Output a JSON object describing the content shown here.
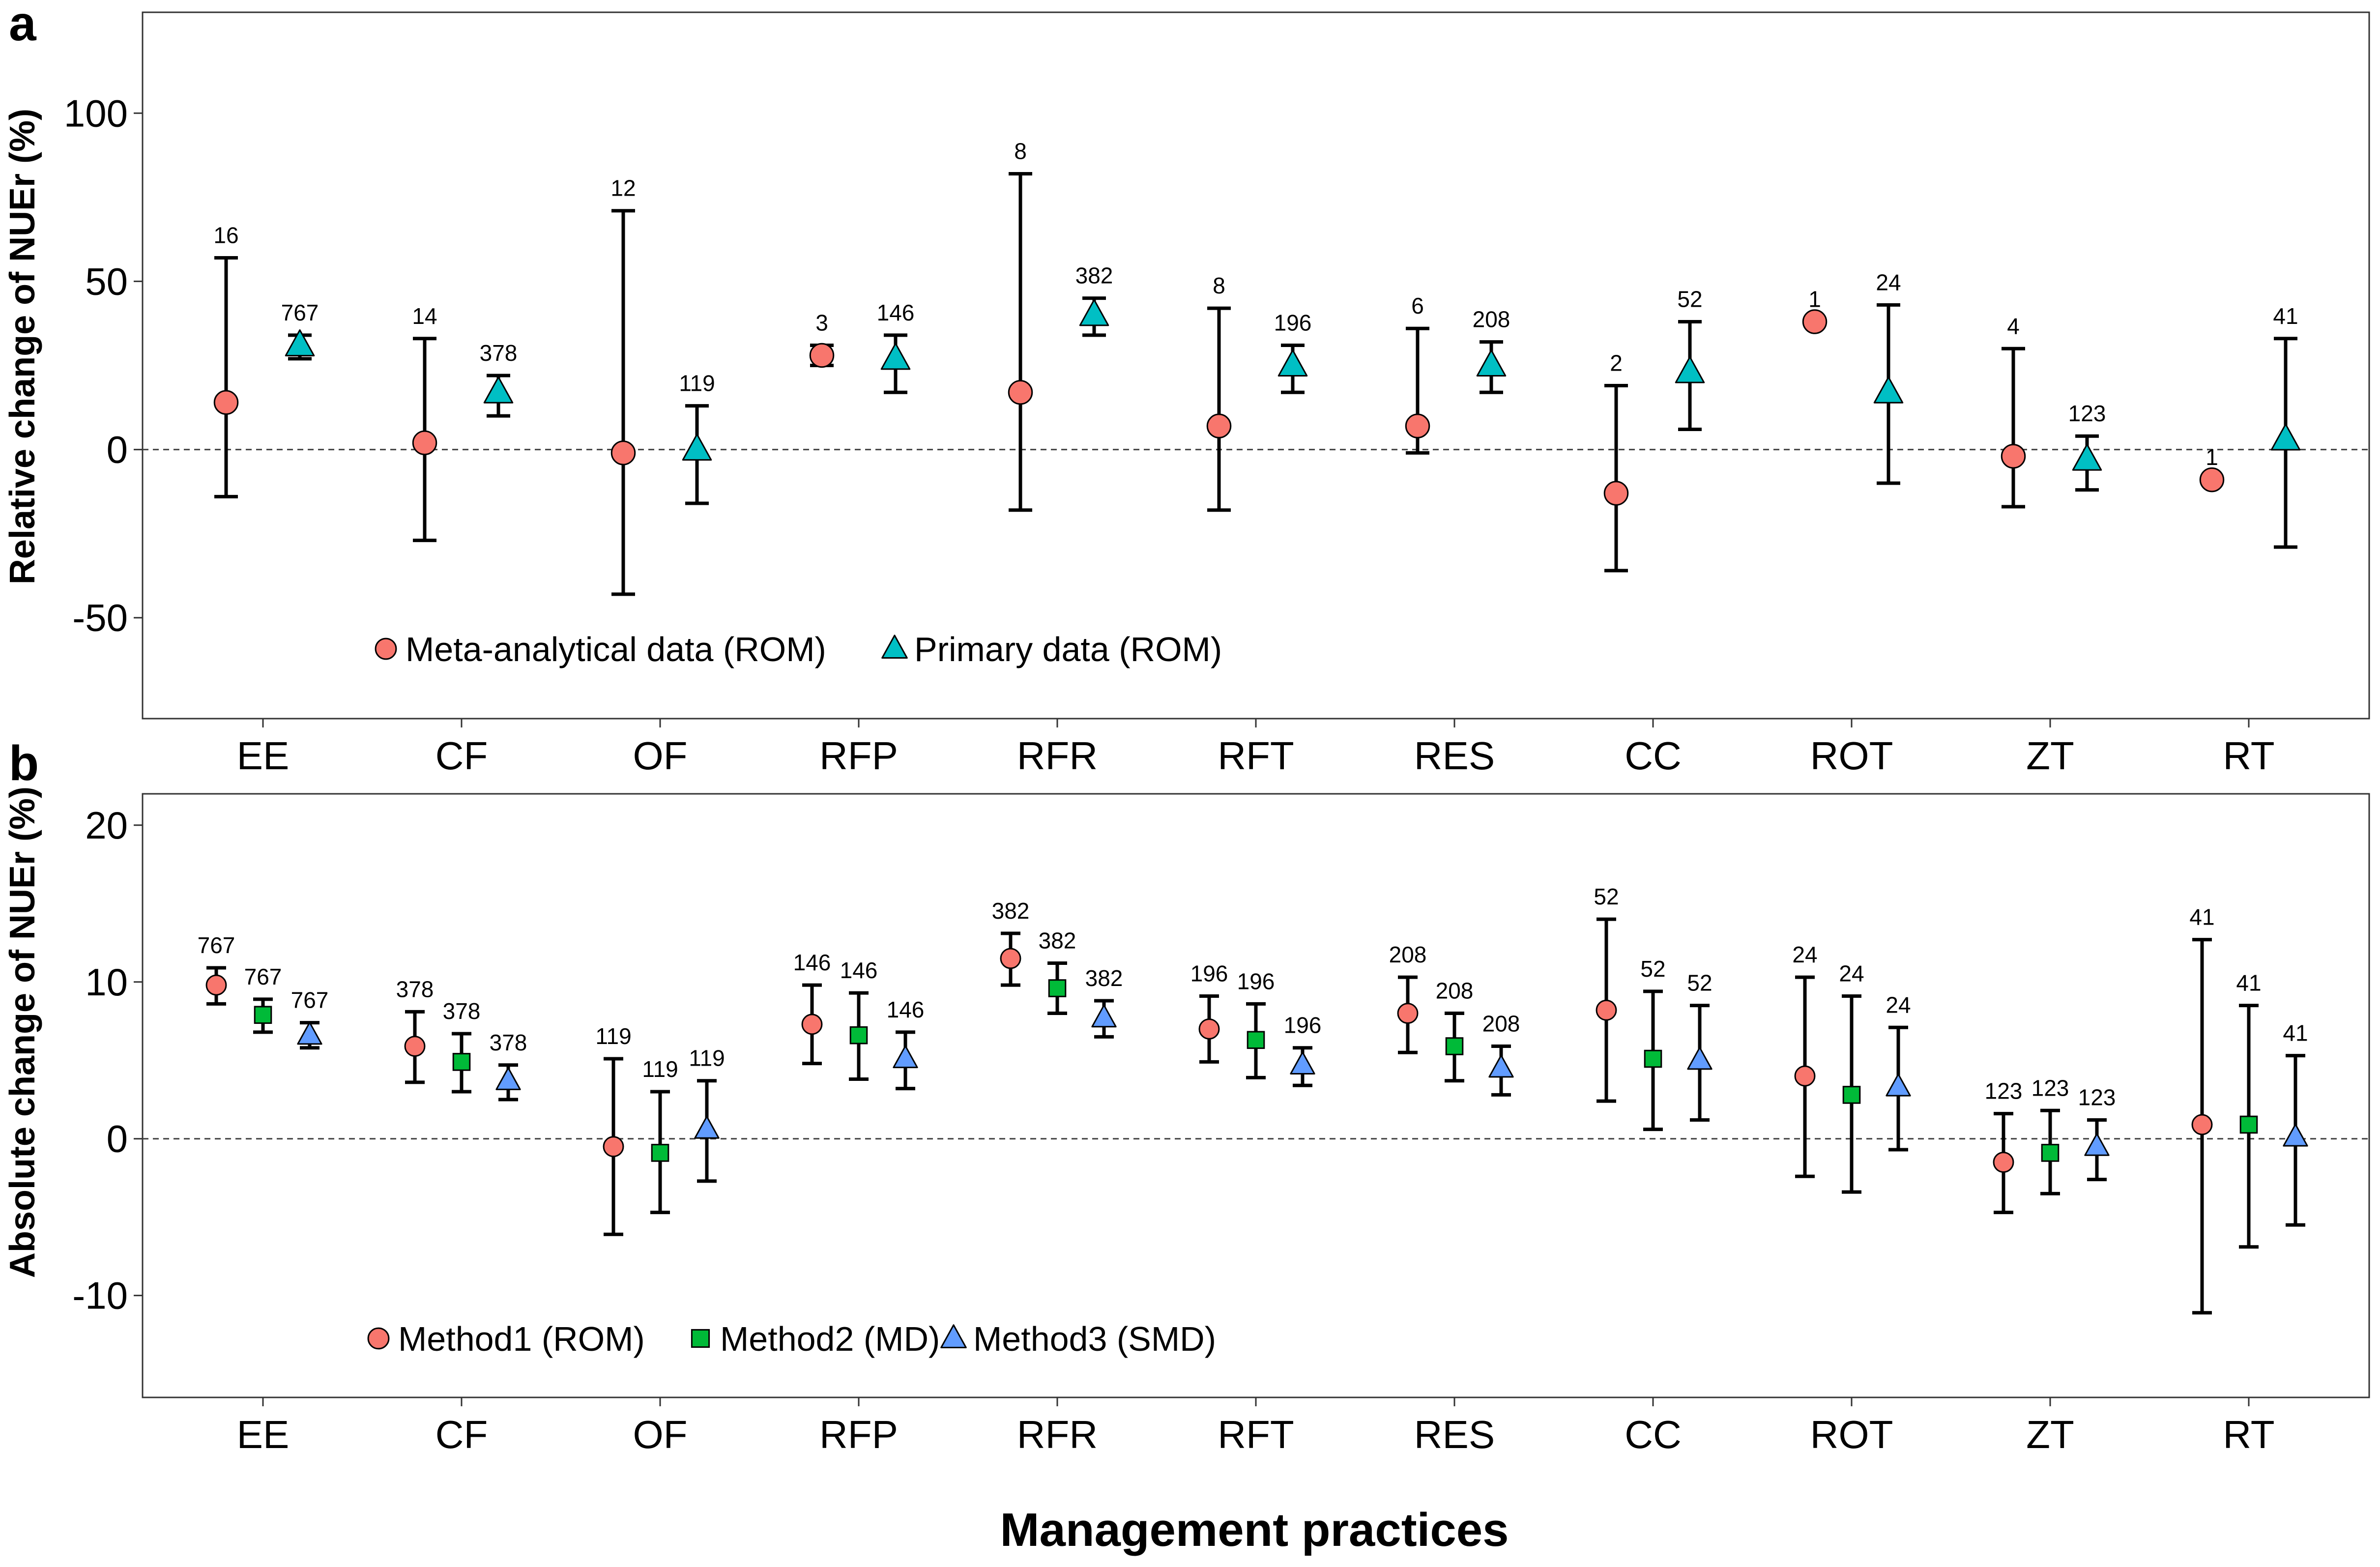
{
  "figure": {
    "xlabel": "Management practices"
  },
  "chart_data": [
    {
      "type": "scatter",
      "panel": "a",
      "ylabel": "Relative change of NUEr (%)",
      "ylim": [
        -80,
        130
      ],
      "yticks": [
        -50,
        0,
        50,
        100
      ],
      "ytick_labels": [
        "-50",
        "0",
        "50",
        "100"
      ],
      "reference_line": 0,
      "grid": false,
      "legend_position": "bottom-left",
      "categories": [
        "EE",
        "CF",
        "OF",
        "RFP",
        "RFR",
        "RFT",
        "RES",
        "CC",
        "ROT",
        "ZT",
        "RT"
      ],
      "series": [
        {
          "name": "Meta-analytical data (ROM)",
          "marker": "circle",
          "color": "#F8766D",
          "values": [
            14,
            2,
            -1,
            28,
            17,
            7,
            7,
            -13,
            38,
            -2,
            -9
          ],
          "lower": [
            -14,
            -27,
            -43,
            25,
            -18,
            -18,
            -1,
            -36,
            38,
            -17,
            -9
          ],
          "upper": [
            57,
            33,
            71,
            31,
            82,
            42,
            36,
            19,
            38,
            30,
            -9
          ],
          "n": [
            "16",
            "14",
            "12",
            "3",
            "8",
            "8",
            "6",
            "2",
            "1",
            "4",
            "1"
          ]
        },
        {
          "name": "Primary data (ROM)",
          "marker": "triangle",
          "color": "#00BFC4",
          "values": [
            31,
            17,
            0,
            27,
            40,
            25,
            25,
            23,
            17,
            -3,
            3
          ],
          "lower": [
            27,
            10,
            -16,
            17,
            34,
            17,
            17,
            6,
            -10,
            -12,
            -29
          ],
          "upper": [
            34,
            22,
            13,
            34,
            45,
            31,
            32,
            38,
            43,
            4,
            33
          ],
          "n": [
            "767",
            "378",
            "119",
            "146",
            "382",
            "196",
            "208",
            "52",
            "24",
            "123",
            "41"
          ]
        }
      ]
    },
    {
      "type": "scatter",
      "panel": "b",
      "ylabel": "Absolute change of NUEr (%)",
      "ylim": [
        -16.5,
        22
      ],
      "yticks": [
        -10,
        0,
        10,
        20
      ],
      "ytick_labels": [
        "-10",
        "0",
        "10",
        "20"
      ],
      "reference_line": 0,
      "grid": false,
      "legend_position": "bottom-left",
      "categories": [
        "EE",
        "CF",
        "OF",
        "RFP",
        "RFR",
        "RFT",
        "RES",
        "CC",
        "ROT",
        "ZT",
        "RT"
      ],
      "series": [
        {
          "name": "Method1 (ROM)",
          "marker": "circle",
          "color": "#F8766D",
          "values": [
            9.8,
            5.9,
            -0.5,
            7.3,
            11.5,
            7.0,
            8.0,
            8.2,
            4.0,
            -1.5,
            0.9
          ],
          "lower": [
            8.6,
            3.6,
            -6.1,
            4.8,
            9.8,
            4.9,
            5.5,
            2.4,
            -2.4,
            -4.7,
            -11.1
          ],
          "upper": [
            10.9,
            8.1,
            5.1,
            9.8,
            13.1,
            9.1,
            10.3,
            14.0,
            10.3,
            1.6,
            12.7
          ],
          "n": [
            "767",
            "378",
            "119",
            "146",
            "382",
            "196",
            "208",
            "52",
            "24",
            "123",
            "41"
          ]
        },
        {
          "name": "Method2 (MD)",
          "marker": "square",
          "color": "#00BA38",
          "values": [
            7.9,
            4.9,
            -0.9,
            6.6,
            9.6,
            6.3,
            5.9,
            5.1,
            2.8,
            -0.9,
            0.9
          ],
          "lower": [
            6.8,
            3.0,
            -4.7,
            3.8,
            8.0,
            3.9,
            3.7,
            0.6,
            -3.4,
            -3.5,
            -6.9
          ],
          "upper": [
            8.9,
            6.7,
            3.0,
            9.3,
            11.2,
            8.6,
            8.0,
            9.4,
            9.1,
            1.8,
            8.5
          ],
          "n": [
            "767",
            "378",
            "119",
            "146",
            "382",
            "196",
            "208",
            "52",
            "24",
            "123",
            "41"
          ]
        },
        {
          "name": "Method3 (SMD)",
          "marker": "triangle",
          "color": "#619CFF",
          "values": [
            6.6,
            3.7,
            0.6,
            5.1,
            7.7,
            4.7,
            4.5,
            5.0,
            3.3,
            -0.5,
            0.1
          ],
          "lower": [
            5.8,
            2.5,
            -2.7,
            3.2,
            6.5,
            3.4,
            2.8,
            1.2,
            -0.7,
            -2.6,
            -5.5
          ],
          "upper": [
            7.4,
            4.7,
            3.7,
            6.8,
            8.8,
            5.8,
            5.9,
            8.5,
            7.1,
            1.2,
            5.3
          ],
          "n": [
            "767",
            "378",
            "119",
            "146",
            "382",
            "196",
            "208",
            "52",
            "24",
            "123",
            "41"
          ]
        }
      ]
    }
  ]
}
